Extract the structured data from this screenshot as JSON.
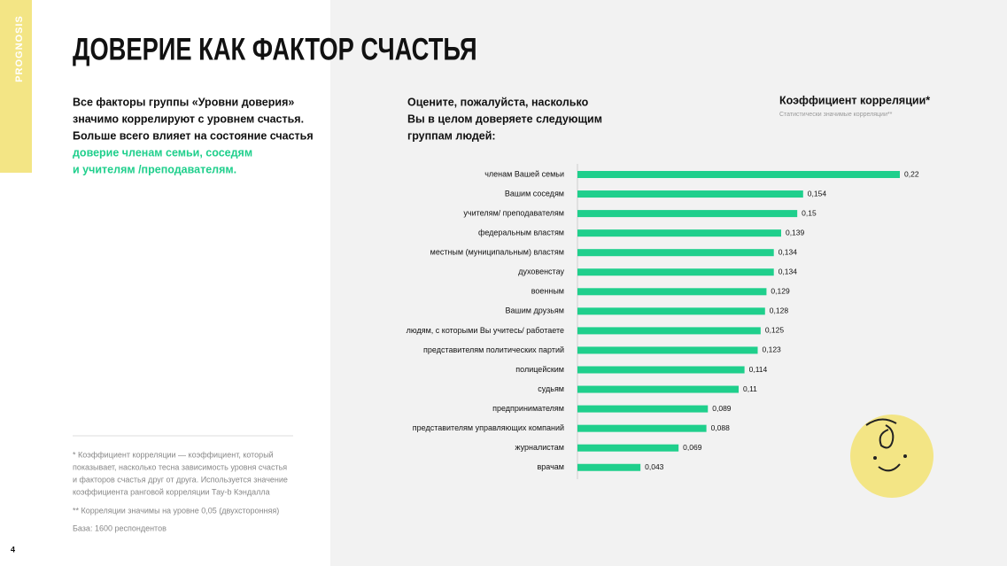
{
  "slide": {
    "logo": "PROGNOSIS",
    "title": "ДОВЕРИЕ КАК ФАКТОР СЧАСТЬЯ",
    "intro_lines": [
      "Все факторы группы «Уровни доверия»",
      "значимо коррелируют с уровнем счастья.",
      "Больше всего влияет на состояние счастья"
    ],
    "highlight_lines": [
      "доверие членам семьи, соседям",
      "и учителям /преподавателям."
    ],
    "highlight_color": "#1fcf8c",
    "footnote_lines": [
      "* Коэффициент корреляции — коэффициент, который",
      "показывает, насколько тесна зависимость уровня счастья",
      "и факторов счастья друг от друга. Используется значение",
      "коэффициента ранговой корреляции Тау-b Кэндалла"
    ],
    "footnote2": "** Корреляции значимы на уровне 0,05 (двухсторонняя)",
    "base": "База: 1600 респондентов",
    "page_number": "4"
  },
  "chart_data": {
    "type": "bar",
    "orientation": "horizontal",
    "title_lines": [
      "Оцените, пожалуйста, насколько",
      "Вы в целом доверяете следующим",
      "группам людей:"
    ],
    "measure": "Коэффициент корреляции*",
    "measure_note": "Статистически значимые корреляции**",
    "color": "#1fcf8c",
    "categories": [
      "членам Вашей семьи",
      "Вашим соседям",
      "учителям/ преподавателям",
      "федеральным властям",
      "местным (муниципальным) властям",
      "духовенстау",
      "военным",
      "Вашим друзьям",
      "людям, с которыми Вы учитесь/ работаете",
      "представителям политических партий",
      "полицейским",
      "судьям",
      "предпринимателям",
      "представителям управляющих компаний",
      "журналистам",
      "врачам"
    ],
    "values": [
      0.22,
      0.154,
      0.15,
      0.139,
      0.134,
      0.134,
      0.129,
      0.128,
      0.125,
      0.123,
      0.114,
      0.11,
      0.089,
      0.088,
      0.069,
      0.043
    ],
    "value_labels": [
      "0,22",
      "0,154",
      "0,15",
      "0,139",
      "0,134",
      "0,134",
      "0,129",
      "0,128",
      "0,125",
      "0,123",
      "0,114",
      "0,11",
      "0,089",
      "0,088",
      "0,069",
      "0,043"
    ]
  }
}
